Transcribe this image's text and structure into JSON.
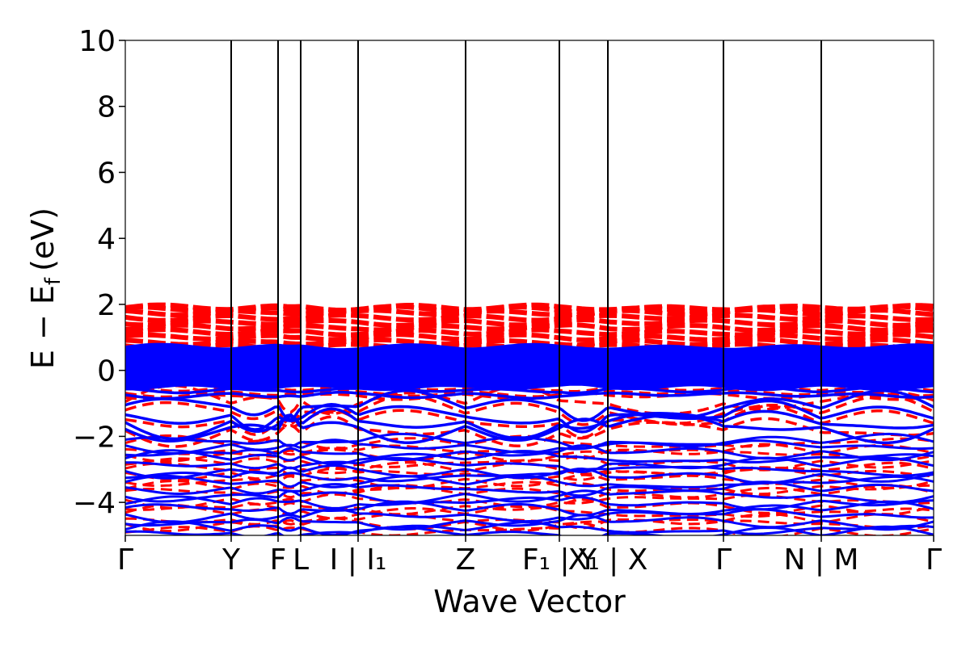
{
  "chart_data": {
    "type": "line",
    "title": "",
    "xlabel": "Wave Vector",
    "ylabel": "E − E_f (eV)",
    "ylabel_parts": {
      "main": "E − E",
      "sub": "f",
      "unit": "(eV)"
    },
    "ylim": [
      -5,
      10
    ],
    "yticks": [
      -4,
      -2,
      0,
      2,
      4,
      6,
      8,
      10
    ],
    "ytick_labels": [
      "−4",
      "−2",
      "0",
      "2",
      "4",
      "6",
      "8",
      "10"
    ],
    "xlim": [
      0,
      1
    ],
    "grid": false,
    "high_symmetry_points": [
      {
        "x": 0.0,
        "label": "Γ",
        "line": false
      },
      {
        "x": 0.131,
        "label": "Y",
        "line": true
      },
      {
        "x": 0.189,
        "label": "F",
        "line": true
      },
      {
        "x": 0.217,
        "label": "L",
        "line": true
      },
      {
        "x": 0.288,
        "label": "I | I₁",
        "line": true
      },
      {
        "x": 0.421,
        "label": "Z",
        "line": true
      },
      {
        "x": 0.537,
        "label": "F₁ | Y",
        "line": true
      },
      {
        "x": 0.597,
        "label": "X₁ | X",
        "line": true
      },
      {
        "x": 0.74,
        "label": "Γ",
        "line": true
      },
      {
        "x": 0.861,
        "label": "N | M",
        "line": true
      },
      {
        "x": 1.0,
        "label": "Γ",
        "line": false
      }
    ],
    "series": [
      {
        "style": "dashed",
        "color": "#ff0000",
        "bands_top": [
          1.9,
          1.85,
          1.75,
          1.6,
          1.45,
          1.3,
          1.15,
          1.0,
          0.85,
          0.72
        ],
        "bands_gap": [
          -0.55,
          -0.7,
          -0.78
        ],
        "bands_valence_top": [
          -0.95,
          -1.25,
          -1.55,
          -1.85
        ],
        "bands_deep": [
          -2.2,
          -2.45,
          -2.55,
          -2.8,
          -3.0,
          -3.15,
          -3.35,
          -3.55,
          -3.7,
          -3.95,
          -4.15,
          -4.3,
          -4.55,
          -4.65,
          -4.85
        ]
      },
      {
        "style": "solid",
        "color": "#0000ff",
        "bands_top": [
          0.65,
          0.55,
          0.45,
          0.35,
          0.25,
          0.15,
          0.05,
          -0.05,
          -0.15,
          -0.25,
          -0.35,
          -0.45
        ],
        "bands_gap": [
          -0.6,
          -0.75
        ],
        "bands_valence_top": [
          -1.1,
          -1.4,
          -1.6,
          -1.75
        ],
        "bands_deep": [
          -2.15,
          -2.3,
          -2.5,
          -2.65,
          -2.85,
          -3.05,
          -3.2,
          -3.4,
          -3.6,
          -3.8,
          -4.0,
          -4.2,
          -4.4,
          -4.6,
          -4.8,
          -4.95
        ]
      }
    ]
  }
}
